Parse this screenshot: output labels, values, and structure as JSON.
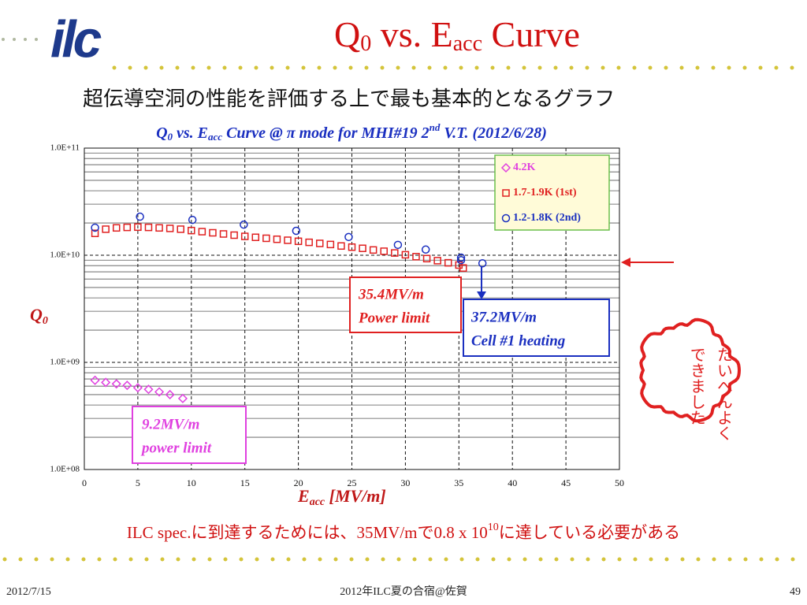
{
  "slide": {
    "logo": "ilc",
    "title": [
      "Q",
      "0",
      " vs. E",
      "acc",
      " Curve"
    ],
    "subtitle": "超伝導空洞の性能を評価する上で最も基本的となるグラフ",
    "note": [
      "ILC spec.に到達するためには、35MV/mで0.8 x 10",
      "10",
      "に達している必要がある"
    ],
    "stamp": [
      "たいへんよく",
      "できました"
    ],
    "footer": {
      "date": "2012/7/15",
      "center": "2012年ILC夏の合宿@佐賀",
      "page": "49"
    }
  },
  "chart_data": {
    "type": "scatter",
    "title": [
      "Q",
      "0",
      " vs. E",
      "acc",
      " Curve @ π mode for MHI#19 2",
      "nd",
      " V.T. (2012/6/28)"
    ],
    "x_label": [
      "E",
      "acc",
      " [MV/m]"
    ],
    "y_label": [
      "Q",
      "0"
    ],
    "log_y": true,
    "grid": true,
    "minor_grid": true,
    "legend": "upper right",
    "xlim": [
      0,
      50
    ],
    "xticks": [
      0,
      5,
      10,
      15,
      20,
      25,
      30,
      35,
      40,
      45,
      50
    ],
    "ylim": [
      100000000,
      100000000000
    ],
    "yticks": [
      {
        "value": 100000000,
        "label": "1.0E+08"
      },
      {
        "value": 1000000000,
        "label": "1.0E+09"
      },
      {
        "value": 10000000000,
        "label": "1.0E+10"
      },
      {
        "value": 100000000000,
        "label": "1.0E+11"
      }
    ],
    "series": [
      {
        "name": "4.2K",
        "color": "#e040e0",
        "marker": "diamond",
        "x": [
          1.0,
          2.0,
          3.0,
          4.0,
          5.0,
          6.0,
          7.0,
          8.0,
          9.2
        ],
        "values": [
          680000000,
          650000000,
          630000000,
          610000000,
          580000000,
          560000000,
          530000000,
          500000000,
          460000000
        ]
      },
      {
        "name": "1.7-1.9K (1st)",
        "color": "#e02020",
        "marker": "square",
        "x": [
          1,
          2,
          3,
          4,
          5,
          6,
          7,
          8,
          9,
          10,
          11,
          12,
          13,
          14,
          15,
          16,
          17,
          18,
          19,
          20,
          21,
          22,
          23,
          24,
          25,
          26,
          27,
          28,
          29,
          30,
          31,
          32,
          33,
          34,
          35,
          35.4
        ],
        "values": [
          16000000000,
          17500000000,
          18000000000,
          18200000000,
          18300000000,
          18200000000,
          18000000000,
          17800000000,
          17500000000,
          17000000000,
          16600000000,
          16200000000,
          15800000000,
          15400000000,
          15000000000,
          14700000000,
          14400000000,
          14100000000,
          13800000000,
          13500000000,
          13200000000,
          12900000000,
          12600000000,
          12200000000,
          11900000000,
          11600000000,
          11200000000,
          10900000000,
          10500000000,
          10100000000,
          9700000000,
          9300000000,
          8900000000,
          8500000000,
          8100000000,
          7600000000
        ]
      },
      {
        "name": "1.2-1.8K (2nd)",
        "color": "#1a2fc0",
        "marker": "circle",
        "x": [
          1.0,
          5.2,
          10.1,
          14.9,
          19.8,
          24.7,
          29.3,
          31.9,
          35.2,
          35.2,
          37.2
        ],
        "values": [
          18100000000,
          22900000000,
          21400000000,
          19300000000,
          16900000000,
          14800000000,
          12500000000,
          11300000000,
          9500000000,
          9000000000,
          8400000000
        ]
      }
    ],
    "annotations": [
      {
        "text": [
          "35.4MV/m",
          "Power limit"
        ],
        "color": "#e02020"
      },
      {
        "text": [
          "37.2MV/m",
          "Cell #1 heating"
        ],
        "color": "#1a2fc0"
      },
      {
        "text": [
          "9.2MV/m",
          "power limit"
        ],
        "color": "#e040e0"
      }
    ]
  }
}
